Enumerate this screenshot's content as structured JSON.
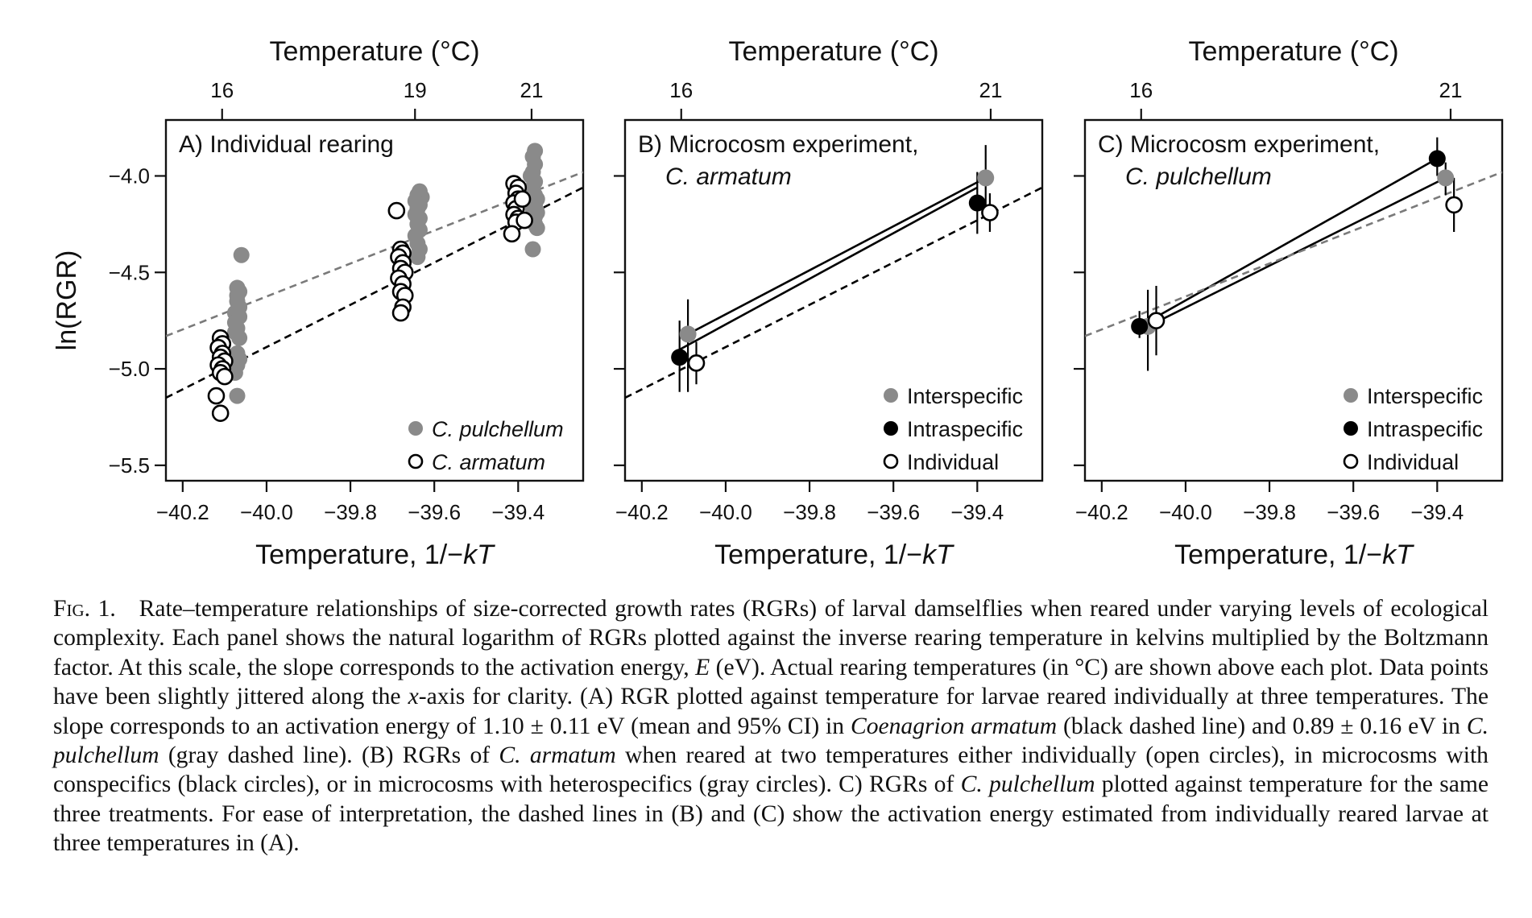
{
  "chart_data": [
    {
      "type": "scatter",
      "panel": "A",
      "title": "A) Individual rearing",
      "title_line2": "",
      "xlabel": "Temperature, 1/−kT",
      "ylabel": "ln(RGR)",
      "top_axis_label": "Temperature (°C)",
      "xlim": [
        -40.24,
        -39.245
      ],
      "ylim": [
        -5.58,
        -3.71
      ],
      "x_ticks": [
        "-40.2",
        "-40.0",
        "-39.8",
        "-39.6",
        "-39.4"
      ],
      "y_ticks": [
        "-4.0",
        "-4.5",
        "-5.0",
        "-5.5"
      ],
      "top_ticks": [
        {
          "label": "16",
          "x": -40.106
        },
        {
          "label": "19",
          "x": -39.646
        },
        {
          "label": "21",
          "x": -39.368
        }
      ],
      "grid": false,
      "legend_position": "bottom-right",
      "legend": [
        {
          "label": "C. pulchellum",
          "marker": "gray-filled"
        },
        {
          "label": "C. armatum",
          "marker": "open"
        }
      ],
      "series": [
        {
          "name": "C. pulchellum",
          "marker": "gray-filled",
          "points": [
            [
              -40.06,
              -4.41
            ],
            [
              -40.07,
              -4.58
            ],
            [
              -40.065,
              -4.6
            ],
            [
              -40.07,
              -4.62
            ],
            [
              -40.07,
              -4.65
            ],
            [
              -40.065,
              -4.68
            ],
            [
              -40.075,
              -4.71
            ],
            [
              -40.065,
              -4.73
            ],
            [
              -40.075,
              -4.76
            ],
            [
              -40.07,
              -4.79
            ],
            [
              -40.075,
              -4.81
            ],
            [
              -40.065,
              -4.84
            ],
            [
              -40.07,
              -4.92
            ],
            [
              -40.065,
              -4.95
            ],
            [
              -40.07,
              -4.98
            ],
            [
              -40.075,
              -5.02
            ],
            [
              -40.07,
              -5.14
            ],
            [
              -39.635,
              -4.08
            ],
            [
              -39.64,
              -4.1
            ],
            [
              -39.63,
              -4.11
            ],
            [
              -39.645,
              -4.13
            ],
            [
              -39.635,
              -4.15
            ],
            [
              -39.64,
              -4.17
            ],
            [
              -39.645,
              -4.2
            ],
            [
              -39.635,
              -4.22
            ],
            [
              -39.64,
              -4.25
            ],
            [
              -39.635,
              -4.28
            ],
            [
              -39.645,
              -4.31
            ],
            [
              -39.64,
              -4.35
            ],
            [
              -39.635,
              -4.38
            ],
            [
              -39.64,
              -4.42
            ],
            [
              -39.36,
              -3.87
            ],
            [
              -39.365,
              -3.9
            ],
            [
              -39.36,
              -3.94
            ],
            [
              -39.365,
              -3.98
            ],
            [
              -39.37,
              -4.0
            ],
            [
              -39.36,
              -4.03
            ],
            [
              -39.365,
              -4.06
            ],
            [
              -39.37,
              -4.08
            ],
            [
              -39.36,
              -4.1
            ],
            [
              -39.355,
              -4.12
            ],
            [
              -39.36,
              -4.15
            ],
            [
              -39.365,
              -4.17
            ],
            [
              -39.355,
              -4.19
            ],
            [
              -39.36,
              -4.21
            ],
            [
              -39.37,
              -4.23
            ],
            [
              -39.36,
              -4.25
            ],
            [
              -39.355,
              -4.27
            ],
            [
              -39.365,
              -4.38
            ]
          ]
        },
        {
          "name": "C. armatum",
          "marker": "open",
          "points": [
            [
              -40.11,
              -4.84
            ],
            [
              -40.105,
              -4.87
            ],
            [
              -40.115,
              -4.89
            ],
            [
              -40.105,
              -4.92
            ],
            [
              -40.11,
              -4.94
            ],
            [
              -40.1,
              -4.96
            ],
            [
              -40.115,
              -4.98
            ],
            [
              -40.105,
              -5.0
            ],
            [
              -40.11,
              -5.02
            ],
            [
              -40.1,
              -5.04
            ],
            [
              -40.12,
              -5.14
            ],
            [
              -40.11,
              -5.23
            ],
            [
              -39.69,
              -4.18
            ],
            [
              -39.68,
              -4.38
            ],
            [
              -39.675,
              -4.4
            ],
            [
              -39.685,
              -4.42
            ],
            [
              -39.675,
              -4.45
            ],
            [
              -39.68,
              -4.48
            ],
            [
              -39.67,
              -4.5
            ],
            [
              -39.685,
              -4.53
            ],
            [
              -39.675,
              -4.56
            ],
            [
              -39.68,
              -4.6
            ],
            [
              -39.67,
              -4.62
            ],
            [
              -39.675,
              -4.68
            ],
            [
              -39.68,
              -4.71
            ],
            [
              -39.41,
              -4.04
            ],
            [
              -39.4,
              -4.06
            ],
            [
              -39.405,
              -4.09
            ],
            [
              -39.4,
              -4.12
            ],
            [
              -39.41,
              -4.14
            ],
            [
              -39.405,
              -4.17
            ],
            [
              -39.41,
              -4.2
            ],
            [
              -39.4,
              -4.22
            ],
            [
              -39.405,
              -4.24
            ],
            [
              -39.415,
              -4.3
            ],
            [
              -39.39,
              -4.12
            ],
            [
              -39.385,
              -4.23
            ]
          ]
        }
      ],
      "lines": [
        {
          "style": "gray-dashed",
          "from": [
            -40.24,
            -4.83
          ],
          "to": [
            -39.245,
            -3.98
          ]
        },
        {
          "style": "black-dashed",
          "from": [
            -40.24,
            -5.15
          ],
          "to": [
            -39.245,
            -4.06
          ]
        }
      ]
    },
    {
      "type": "scatter",
      "panel": "B",
      "title": "B) Microcosm experiment,",
      "title_line2": "C. armatum",
      "xlabel": "Temperature, 1/−kT",
      "ylabel": "",
      "top_axis_label": "Temperature (°C)",
      "xlim": [
        -40.24,
        -39.245
      ],
      "ylim": [
        -5.58,
        -3.71
      ],
      "x_ticks": [
        "-40.2",
        "-40.0",
        "-39.8",
        "-39.6",
        "-39.4"
      ],
      "y_ticks": [
        "-4.0",
        "-4.5",
        "-5.0",
        "-5.5"
      ],
      "top_ticks": [
        {
          "label": "16",
          "x": -40.106
        },
        {
          "label": "21",
          "x": -39.368
        }
      ],
      "grid": false,
      "legend_position": "bottom-right",
      "legend": [
        {
          "label": "Interspecific",
          "marker": "gray-filled"
        },
        {
          "label": "Intraspecific",
          "marker": "black-filled"
        },
        {
          "label": "Individual",
          "marker": "open"
        }
      ],
      "series": [
        {
          "name": "Interspecific",
          "marker": "gray-filled",
          "points": [
            {
              "x": -40.09,
              "y": -4.82,
              "lo": -5.12,
              "hi": -4.64
            },
            {
              "x": -39.38,
              "y": -4.01,
              "lo": -4.22,
              "hi": -3.84
            }
          ]
        },
        {
          "name": "Intraspecific",
          "marker": "black-filled",
          "points": [
            {
              "x": -40.11,
              "y": -4.94,
              "lo": -5.12,
              "hi": -4.75
            },
            {
              "x": -39.4,
              "y": -4.14,
              "lo": -4.3,
              "hi": -3.98
            }
          ]
        },
        {
          "name": "Individual",
          "marker": "open",
          "points": [
            {
              "x": -40.07,
              "y": -4.97,
              "lo": -5.08,
              "hi": -4.86
            },
            {
              "x": -39.37,
              "y": -4.19,
              "lo": -4.29,
              "hi": -4.09
            }
          ]
        }
      ],
      "lines": [
        {
          "style": "black-solid",
          "from": [
            -40.09,
            -4.82
          ],
          "to": [
            -39.38,
            -4.01
          ]
        },
        {
          "style": "black-solid",
          "from": [
            -40.11,
            -4.9
          ],
          "to": [
            -39.4,
            -4.06
          ]
        },
        {
          "style": "black-dashed",
          "from": [
            -40.24,
            -5.15
          ],
          "to": [
            -39.245,
            -4.06
          ]
        }
      ]
    },
    {
      "type": "scatter",
      "panel": "C",
      "title": "C) Microcosm experiment,",
      "title_line2": "C. pulchellum",
      "xlabel": "Temperature, 1/−kT",
      "ylabel": "",
      "top_axis_label": "Temperature (°C)",
      "xlim": [
        -40.24,
        -39.245
      ],
      "ylim": [
        -5.58,
        -3.71
      ],
      "x_ticks": [
        "-40.2",
        "-40.0",
        "-39.8",
        "-39.6",
        "-39.4"
      ],
      "y_ticks": [
        "-4.0",
        "-4.5",
        "-5.0",
        "-5.5"
      ],
      "top_ticks": [
        {
          "label": "16",
          "x": -40.106
        },
        {
          "label": "21",
          "x": -39.368
        }
      ],
      "grid": false,
      "legend_position": "bottom-right",
      "legend": [
        {
          "label": "Interspecific",
          "marker": "gray-filled"
        },
        {
          "label": "Intraspecific",
          "marker": "black-filled"
        },
        {
          "label": "Individual",
          "marker": "open"
        }
      ],
      "series": [
        {
          "name": "Interspecific",
          "marker": "gray-filled",
          "points": [
            {
              "x": -40.09,
              "y": -4.78,
              "lo": -5.01,
              "hi": -4.59
            },
            {
              "x": -39.38,
              "y": -4.01,
              "lo": -4.1,
              "hi": -3.93
            }
          ]
        },
        {
          "name": "Intraspecific",
          "marker": "black-filled",
          "points": [
            {
              "x": -40.11,
              "y": -4.78,
              "lo": -4.84,
              "hi": -4.7
            },
            {
              "x": -39.4,
              "y": -3.91,
              "lo": -4.0,
              "hi": -3.8
            }
          ]
        },
        {
          "name": "Individual",
          "marker": "open",
          "points": [
            {
              "x": -40.07,
              "y": -4.75,
              "lo": -4.93,
              "hi": -4.57
            },
            {
              "x": -39.36,
              "y": -4.15,
              "lo": -4.29,
              "hi": -4.01
            }
          ]
        }
      ],
      "lines": [
        {
          "style": "black-solid",
          "from": [
            -40.11,
            -4.78
          ],
          "to": [
            -39.4,
            -3.91
          ]
        },
        {
          "style": "black-solid",
          "from": [
            -40.09,
            -4.78
          ],
          "to": [
            -39.38,
            -4.01
          ]
        },
        {
          "style": "gray-dashed",
          "from": [
            -40.24,
            -4.83
          ],
          "to": [
            -39.245,
            -3.98
          ]
        }
      ]
    }
  ],
  "caption": {
    "lead": "Fig. 1.",
    "text": "Rate–temperature relationships of size-corrected growth rates (RGRs) of larval damselflies when reared under varying levels of ecological complexity. Each panel shows the natural logarithm of RGRs plotted against the inverse rearing temperature in kelvins multiplied by the Boltzmann factor. At this scale, the slope corresponds to the activation energy, E (eV). Actual rearing temperatures (in °C) are shown above each plot. Data points have been slightly jittered along the x-axis for clarity. (A) RGR plotted against temperature for larvae reared individually at three temperatures. The slope corresponds to an activation energy of 1.10 ± 0.11 eV (mean and 95% CI) in Coenagrion armatum (black dashed line) and 0.89 ± 0.16 eV in C. pulchellum (gray dashed line). (B) RGRs of C. armatum when reared at two temperatures either individually (open circles), in microcosms with conspecifics (black circles), or in microcosms with heterospecifics (gray circles). C) RGRs of C. pulchellum plotted against temperature for the same three treatments. For ease of interpretation, the dashed lines in (B) and (C) show the activation energy estimated from individually reared larvae at three temperatures in (A)."
  },
  "colors": {
    "gray_marker": "#8a8a8a",
    "black_marker": "#000000",
    "axis": "#111111",
    "gray_line": "#7a7a7a"
  }
}
